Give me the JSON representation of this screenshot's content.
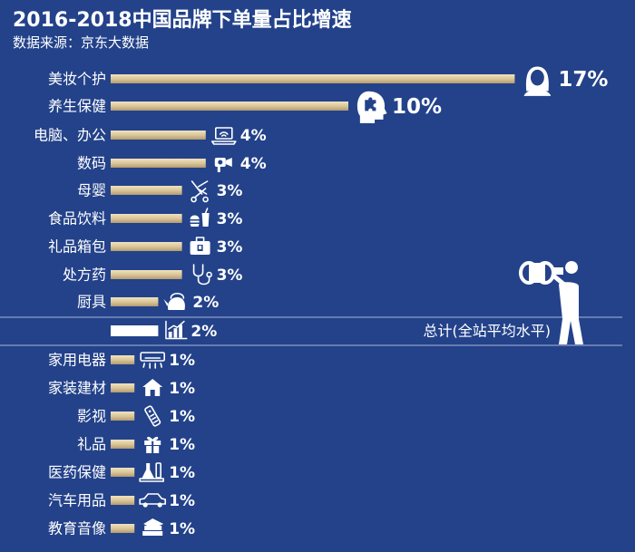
{
  "title": "2016-2018中国品牌下单量占比增速",
  "subtitle": "数据来源：京东大数据",
  "colors": {
    "background": "#23428a",
    "bar_gold_light": "#f1e3c0",
    "bar_gold_dark": "#b39b6e",
    "total_bar": "#ffffff",
    "text": "#ffffff",
    "divider": "#a9b7d6"
  },
  "chart_data": {
    "type": "bar",
    "orientation": "horizontal",
    "value_unit": "%",
    "categories": [
      "美妆个护",
      "养生保健",
      "电脑、办公",
      "数码",
      "母婴",
      "食品饮料",
      "礼品箱包",
      "处方药",
      "厨具",
      "家用电器",
      "家装建材",
      "影视",
      "礼品",
      "医药保健",
      "汽车用品",
      "教育音像"
    ],
    "values": [
      17,
      10,
      4,
      4,
      3,
      3,
      3,
      3,
      2,
      1,
      1,
      1,
      1,
      1,
      1,
      1
    ],
    "value_labels": [
      "17%",
      "10%",
      "4%",
      "4%",
      "3%",
      "3%",
      "3%",
      "3%",
      "2%",
      "1%",
      "1%",
      "1%",
      "1%",
      "1%",
      "1%",
      "1%"
    ],
    "icons": [
      "woman-face-icon",
      "puzzle-head-icon",
      "laptop-icon",
      "camera-icon",
      "stroller-icon",
      "burger-drink-icon",
      "suitcase-icon",
      "stethoscope-icon",
      "kettle-icon",
      "air-conditioner-icon",
      "house-icon",
      "remote-control-icon",
      "gift-icon",
      "lab-flask-icon",
      "car-icon",
      "book-stack-icon"
    ],
    "total": {
      "label": "总计(全站平均水平)",
      "value": 2,
      "value_label": "2%",
      "icon": "bar-chart-icon"
    },
    "decoration_icon": "binoculars-person-icon"
  }
}
